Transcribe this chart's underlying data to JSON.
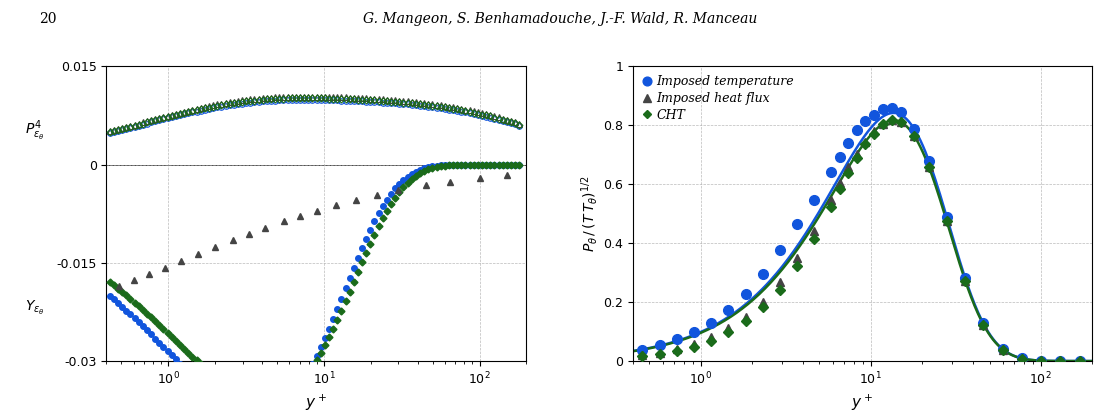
{
  "left_plot": {
    "ylabel_top": "$P^4_{\\varepsilon_\\theta}$",
    "ylabel_bottom": "$Y_{\\varepsilon_\\theta}$",
    "xlabel": "$y^+$",
    "ylim": [
      -0.03,
      0.015
    ],
    "xlim": [
      0.4,
      200
    ],
    "yticks": [
      -0.03,
      -0.015,
      0,
      0.015
    ],
    "blue_color": "#1155dd",
    "green_color": "#1a6b1a",
    "dark_color": "#444444"
  },
  "right_plot": {
    "ylabel": "$P_\\theta\\,/\\,(T\\,T_\\theta)^{1/2}$",
    "xlabel": "$y^+$",
    "ylim": [
      0,
      1.0
    ],
    "xlim": [
      0.4,
      200
    ],
    "yticks": [
      0,
      0.2,
      0.4,
      0.6,
      0.8,
      1.0
    ],
    "legend_entries": [
      "Imposed temperature",
      "Imposed heat flux",
      "CHT"
    ],
    "blue_color": "#1155dd",
    "green_color": "#1a6b1a",
    "dark_color": "#444444"
  },
  "header_text": "G. Mangeon, S. Benhamadouche, J.-F. Wald, R. Manceau",
  "page_number": "20"
}
